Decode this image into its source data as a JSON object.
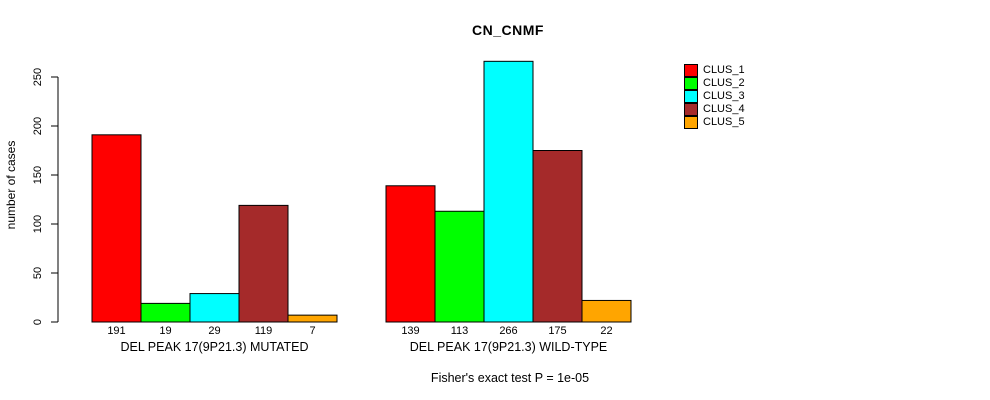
{
  "title": "CN_CNMF",
  "colors": {
    "background": "#ffffff",
    "axis": "#000000",
    "bar_border": "#000000",
    "text": "#000000"
  },
  "legend": {
    "position": "right",
    "items": [
      {
        "label": "CLUS_1",
        "color": "#FF0000"
      },
      {
        "label": "CLUS_2",
        "color": "#00FF00"
      },
      {
        "label": "CLUS_3",
        "color": "#00FFFF"
      },
      {
        "label": "CLUS_4",
        "color": "#A52A2A"
      },
      {
        "label": "CLUS_5",
        "color": "#FFA500"
      }
    ]
  },
  "chart_data": {
    "type": "bar",
    "title": "CN_CNMF",
    "ylabel": "number of cases",
    "xlabel": "",
    "footnote": "Fisher's exact test P = 1e-05",
    "ylim": [
      0,
      250
    ],
    "yticks": [
      0,
      50,
      100,
      150,
      200,
      250
    ],
    "grid": false,
    "legend_position": "top-right",
    "categories": [
      "DEL PEAK 17(9P21.3) MUTATED",
      "DEL PEAK 17(9P21.3) WILD-TYPE"
    ],
    "series": [
      {
        "name": "CLUS_1",
        "color": "#FF0000",
        "values": [
          191,
          139
        ]
      },
      {
        "name": "CLUS_2",
        "color": "#00FF00",
        "values": [
          19,
          113
        ]
      },
      {
        "name": "CLUS_3",
        "color": "#00FFFF",
        "values": [
          29,
          266
        ]
      },
      {
        "name": "CLUS_4",
        "color": "#A52A2A",
        "values": [
          119,
          175
        ]
      },
      {
        "name": "CLUS_5",
        "color": "#FFA500",
        "values": [
          7,
          22
        ]
      }
    ],
    "groups": [
      {
        "label": "DEL PEAK 17(9P21.3) MUTATED",
        "values": [
          191,
          19,
          29,
          119,
          7
        ]
      },
      {
        "label": "DEL PEAK 17(9P21.3) WILD-TYPE",
        "values": [
          139,
          113,
          266,
          175,
          22
        ]
      }
    ],
    "bar_value_labels_shown": true
  }
}
